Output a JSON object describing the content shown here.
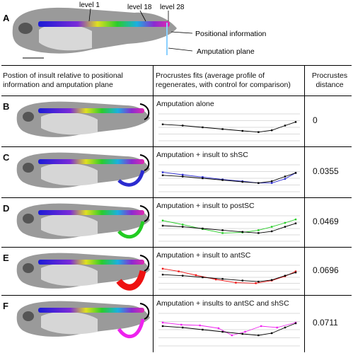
{
  "panel_a": {
    "label": "A",
    "levels": [
      "level 1",
      "level 18",
      "level 28"
    ],
    "positional_information": "Positional information",
    "amputation_plane": "Amputation plane"
  },
  "table": {
    "headers": {
      "position": "Postion of insult relative to positional information and amputation plane",
      "fits": "Procrustes  fits  (average profile of regenerates, with control for comparison)",
      "distance": "Procrustes distance"
    },
    "rows": [
      {
        "label": "B",
        "title": "Amputation alone",
        "distance": "0",
        "color": "#000000"
      },
      {
        "label": "C",
        "title": "Amputation + insult to shSC",
        "distance": "0.0355",
        "color": "#2b2bd0"
      },
      {
        "label": "D",
        "title": "Amputation + insult to postSC",
        "distance": "0.0469",
        "color": "#22cc22"
      },
      {
        "label": "E",
        "title": "Amputation + insult to antSC",
        "distance": "0.0696",
        "color": "#ee1111"
      },
      {
        "label": "F",
        "title": "Amputation + insults to antSC and shSC",
        "distance": "0.0711",
        "color": "#ee22ee"
      }
    ]
  }
}
